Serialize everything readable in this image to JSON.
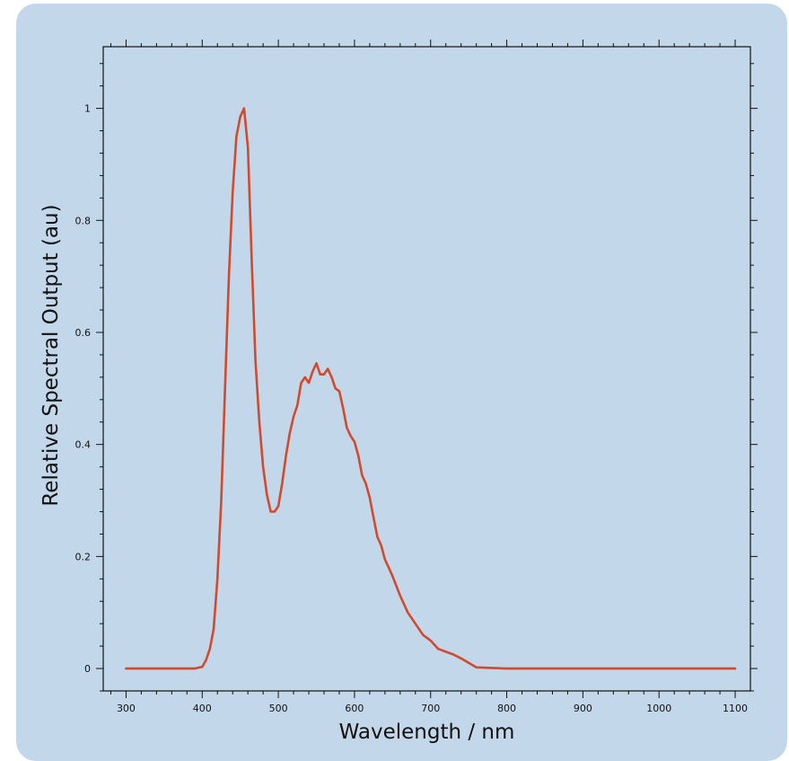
{
  "colors": {
    "panel_background": "#c3d7ea",
    "plot_background": "#c3d7ea",
    "axes": "#111111",
    "series_line": "#d14a2c"
  },
  "chart_data": {
    "type": "line",
    "title": "",
    "xlabel": "Wavelength / nm",
    "ylabel": "Relative Spectral Output (au)",
    "xlim": [
      270,
      1120
    ],
    "ylim": [
      -0.04,
      1.11
    ],
    "xticks": [
      300,
      400,
      500,
      600,
      700,
      800,
      900,
      1000,
      1100
    ],
    "yticks": [
      0,
      0.2,
      0.4,
      0.6,
      0.8,
      1
    ],
    "ytick_labels": [
      "0",
      "0.2",
      "0.4",
      "0.6",
      "0.8",
      "1"
    ],
    "grid": false,
    "legend": "none",
    "series": [
      {
        "x": [
          300,
          350,
          390,
          400,
          405,
          410,
          415,
          420,
          425,
          430,
          435,
          440,
          445,
          450,
          455,
          460,
          465,
          470,
          475,
          480,
          485,
          490,
          495,
          500,
          505,
          510,
          515,
          520,
          525,
          530,
          535,
          540,
          545,
          550,
          555,
          560,
          565,
          570,
          575,
          580,
          585,
          590,
          595,
          600,
          605,
          610,
          615,
          620,
          625,
          630,
          635,
          640,
          645,
          650,
          660,
          670,
          680,
          690,
          700,
          710,
          720,
          730,
          740,
          750,
          760,
          800,
          900,
          1000,
          1100
        ],
        "y": [
          0,
          0,
          0,
          0.003,
          0.015,
          0.035,
          0.07,
          0.16,
          0.3,
          0.5,
          0.7,
          0.85,
          0.95,
          0.985,
          1.0,
          0.93,
          0.73,
          0.55,
          0.44,
          0.36,
          0.31,
          0.28,
          0.28,
          0.29,
          0.33,
          0.38,
          0.42,
          0.45,
          0.47,
          0.51,
          0.52,
          0.51,
          0.53,
          0.545,
          0.525,
          0.525,
          0.535,
          0.52,
          0.5,
          0.495,
          0.465,
          0.43,
          0.415,
          0.405,
          0.38,
          0.345,
          0.33,
          0.305,
          0.27,
          0.235,
          0.22,
          0.195,
          0.18,
          0.165,
          0.13,
          0.1,
          0.08,
          0.06,
          0.05,
          0.035,
          0.03,
          0.025,
          0.018,
          0.01,
          0.002,
          0,
          0,
          0,
          0
        ]
      }
    ]
  }
}
